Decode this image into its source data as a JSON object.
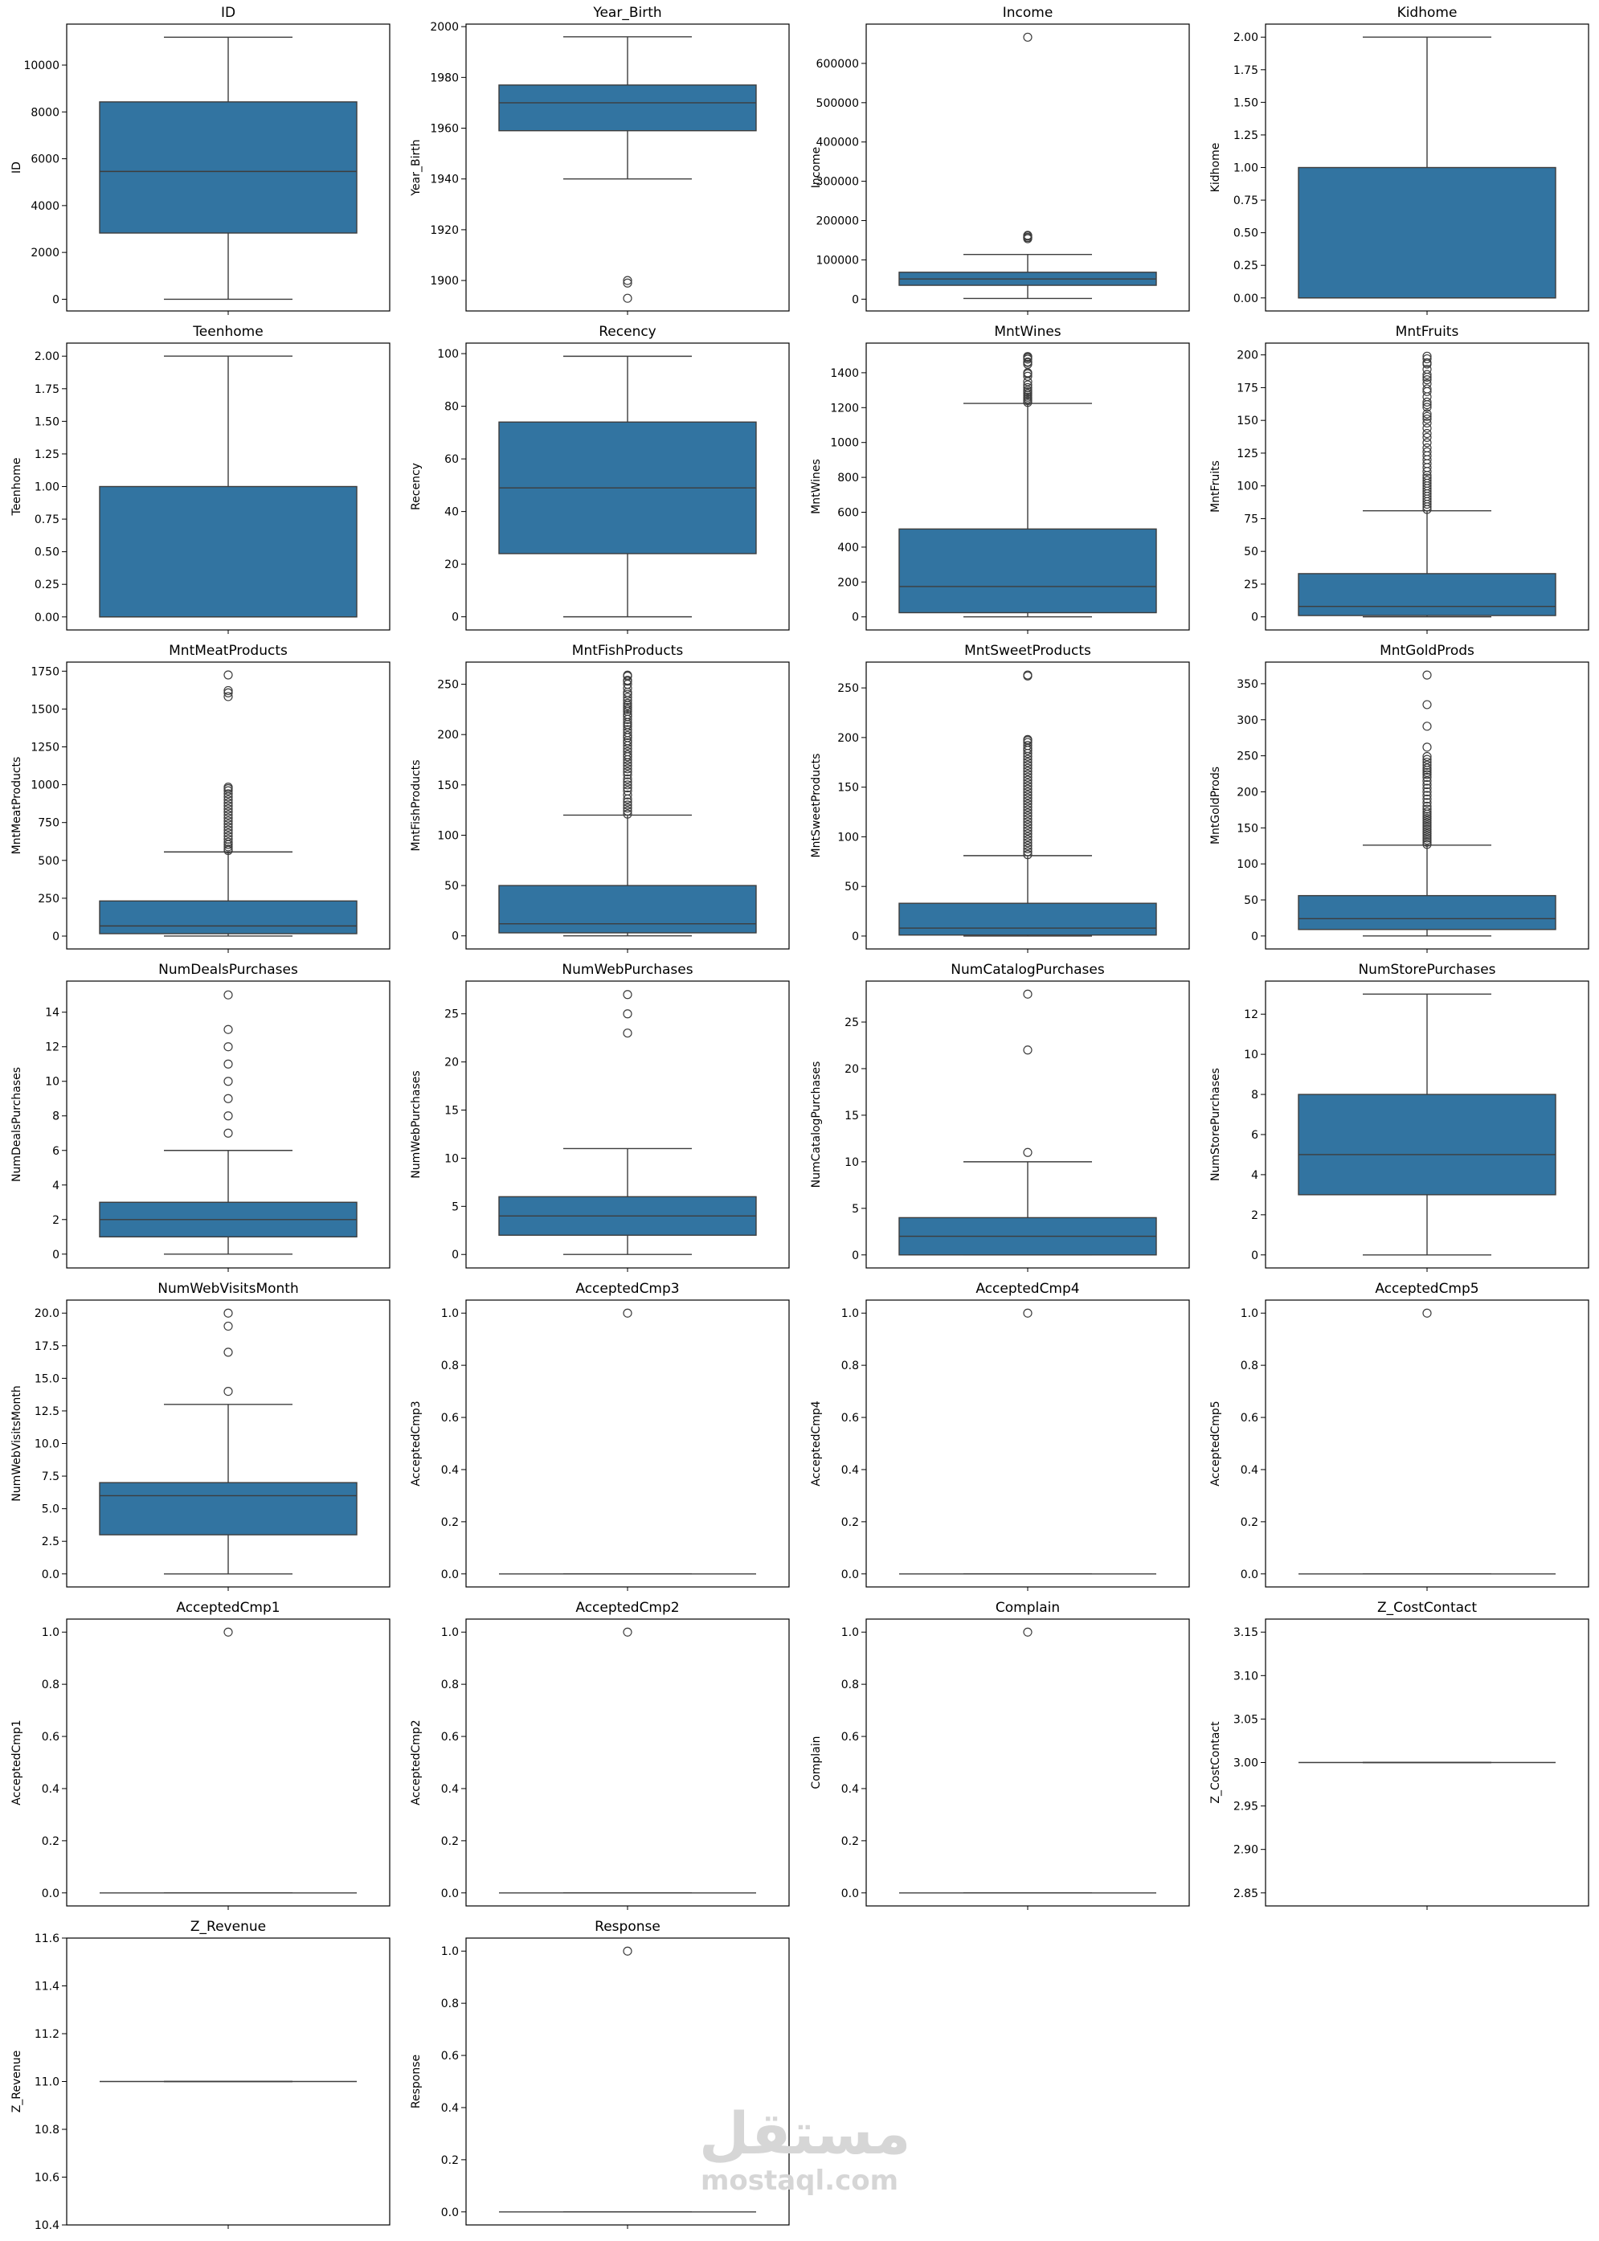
{
  "chart_data": [
    {
      "type": "box",
      "title": "ID",
      "ylabel": "ID",
      "ylim": [
        -500,
        11750
      ],
      "yticks": [
        0,
        2000,
        4000,
        6000,
        8000,
        10000
      ],
      "box": {
        "q1": 2828,
        "median": 5458,
        "q3": 8428,
        "whisker_low": 0,
        "whisker_high": 11191
      },
      "outliers": []
    },
    {
      "type": "box",
      "title": "Year_Birth",
      "ylabel": "Year_Birth",
      "ylim": [
        1888,
        2001
      ],
      "yticks": [
        1900,
        1920,
        1940,
        1960,
        1980,
        2000
      ],
      "box": {
        "q1": 1959,
        "median": 1970,
        "q3": 1977,
        "whisker_low": 1940,
        "whisker_high": 1996
      },
      "outliers": [
        1893,
        1899,
        1900
      ]
    },
    {
      "type": "box",
      "title": "Income",
      "ylabel": "Income",
      "ylim": [
        -30000,
        700000
      ],
      "yticks": [
        0,
        100000,
        200000,
        300000,
        400000,
        500000,
        600000
      ],
      "box": {
        "q1": 35303,
        "median": 51382,
        "q3": 68522,
        "whisker_low": 1730,
        "whisker_high": 113734
      },
      "outliers": [
        153924,
        156924,
        157146,
        157243,
        160803,
        162397,
        666666
      ]
    },
    {
      "type": "box",
      "title": "Kidhome",
      "ylabel": "Kidhome",
      "ylim": [
        -0.1,
        2.1
      ],
      "yticks": [
        0.0,
        0.25,
        0.5,
        0.75,
        1.0,
        1.25,
        1.5,
        1.75,
        2.0
      ],
      "box": {
        "q1": 0,
        "median": 0,
        "q3": 1,
        "whisker_low": 0,
        "whisker_high": 2
      },
      "outliers": []
    },
    {
      "type": "box",
      "title": "Teenhome",
      "ylabel": "Teenhome",
      "ylim": [
        -0.1,
        2.1
      ],
      "yticks": [
        0.0,
        0.25,
        0.5,
        0.75,
        1.0,
        1.25,
        1.5,
        1.75,
        2.0
      ],
      "box": {
        "q1": 0,
        "median": 0,
        "q3": 1,
        "whisker_low": 0,
        "whisker_high": 2
      },
      "outliers": []
    },
    {
      "type": "box",
      "title": "Recency",
      "ylabel": "Recency",
      "ylim": [
        -5,
        104
      ],
      "yticks": [
        0,
        20,
        40,
        60,
        80,
        100
      ],
      "box": {
        "q1": 24,
        "median": 49,
        "q3": 74,
        "whisker_low": 0,
        "whisker_high": 99
      },
      "outliers": []
    },
    {
      "type": "box",
      "title": "MntWines",
      "ylabel": "MntWines",
      "ylim": [
        -75,
        1570
      ],
      "yticks": [
        0,
        200,
        400,
        600,
        800,
        1000,
        1200,
        1400
      ],
      "box": {
        "q1": 24,
        "median": 174,
        "q3": 504,
        "whisker_low": 0,
        "whisker_high": 1224
      },
      "outliers": [
        1230,
        1240,
        1250,
        1260,
        1270,
        1280,
        1290,
        1300,
        1315,
        1330,
        1349,
        1380,
        1394,
        1400,
        1449,
        1459,
        1462,
        1478,
        1486,
        1492,
        1493
      ]
    },
    {
      "type": "box",
      "title": "MntFruits",
      "ylabel": "MntFruits",
      "ylim": [
        -10,
        209
      ],
      "yticks": [
        0,
        25,
        50,
        75,
        100,
        125,
        150,
        175,
        200
      ],
      "box": {
        "q1": 1,
        "median": 8,
        "q3": 33,
        "whisker_low": 0,
        "whisker_high": 81
      },
      "outliers": [
        82,
        84,
        86,
        88,
        90,
        92,
        94,
        96,
        98,
        100,
        102,
        104,
        106,
        108,
        111,
        114,
        117,
        120,
        123,
        126,
        129,
        133,
        137,
        140,
        144,
        148,
        151,
        153,
        155,
        160,
        162,
        164,
        168,
        172,
        174,
        178,
        181,
        183,
        185,
        189,
        193,
        194,
        197,
        199
      ]
    },
    {
      "type": "box",
      "title": "MntMeatProducts",
      "ylabel": "MntMeatProducts",
      "ylim": [
        -85,
        1810
      ],
      "yticks": [
        0,
        250,
        500,
        750,
        1000,
        1250,
        1500,
        1750
      ],
      "box": {
        "q1": 16,
        "median": 67,
        "q3": 232,
        "whisker_low": 0,
        "whisker_high": 556
      },
      "outliers": [
        565,
        575,
        590,
        605,
        620,
        640,
        660,
        680,
        700,
        720,
        740,
        760,
        780,
        800,
        820,
        840,
        860,
        880,
        900,
        920,
        940,
        960,
        974,
        984,
        1582,
        1607,
        1622,
        1725
      ]
    },
    {
      "type": "box",
      "title": "MntFishProducts",
      "ylabel": "MntFishProducts",
      "ylim": [
        -13,
        272
      ],
      "yticks": [
        0,
        50,
        100,
        150,
        200,
        250
      ],
      "box": {
        "q1": 3,
        "median": 12,
        "q3": 50,
        "whisker_low": 0,
        "whisker_high": 120
      },
      "outliers": [
        121,
        124,
        127,
        130,
        133,
        136,
        140,
        144,
        147,
        150,
        153,
        156,
        160,
        163,
        166,
        169,
        172,
        175,
        178,
        180,
        183,
        186,
        189,
        192,
        194,
        197,
        199,
        202,
        205,
        208,
        210,
        212,
        215,
        218,
        220,
        223,
        225,
        227,
        229,
        231,
        234,
        237,
        240,
        242,
        246,
        250,
        253,
        254,
        258,
        259
      ]
    },
    {
      "type": "box",
      "title": "MntSweetProducts",
      "ylabel": "MntSweetProducts",
      "ylim": [
        -13,
        276
      ],
      "yticks": [
        0,
        50,
        100,
        150,
        200,
        250
      ],
      "box": {
        "q1": 1,
        "median": 8,
        "q3": 33,
        "whisker_low": 0,
        "whisker_high": 81
      },
      "outliers": [
        82,
        85,
        88,
        91,
        94,
        97,
        100,
        103,
        106,
        109,
        112,
        115,
        118,
        121,
        124,
        127,
        130,
        133,
        136,
        139,
        142,
        145,
        148,
        151,
        154,
        157,
        160,
        163,
        166,
        169,
        172,
        175,
        178,
        181,
        184,
        187,
        189,
        192,
        195,
        197,
        198,
        262,
        263
      ]
    },
    {
      "type": "box",
      "title": "MntGoldProds",
      "ylabel": "MntGoldProds",
      "ylim": [
        -18,
        380
      ],
      "yticks": [
        0,
        50,
        100,
        150,
        200,
        250,
        300,
        350
      ],
      "box": {
        "q1": 9,
        "median": 24,
        "q3": 56,
        "whisker_low": 0,
        "whisker_high": 126
      },
      "outliers": [
        127,
        130,
        133,
        136,
        139,
        142,
        145,
        148,
        151,
        154,
        157,
        160,
        163,
        166,
        169,
        172,
        176,
        180,
        185,
        190,
        195,
        200,
        205,
        210,
        215,
        220,
        224,
        227,
        230,
        233,
        237,
        241,
        245,
        249,
        262,
        291,
        321,
        362
      ]
    },
    {
      "type": "box",
      "title": "NumDealsPurchases",
      "ylabel": "NumDealsPurchases",
      "ylim": [
        -0.8,
        15.8
      ],
      "yticks": [
        0,
        2,
        4,
        6,
        8,
        10,
        12,
        14
      ],
      "box": {
        "q1": 1,
        "median": 2,
        "q3": 3,
        "whisker_low": 0,
        "whisker_high": 6
      },
      "outliers": [
        7,
        8,
        9,
        10,
        11,
        12,
        13,
        15
      ]
    },
    {
      "type": "box",
      "title": "NumWebPurchases",
      "ylabel": "NumWebPurchases",
      "ylim": [
        -1.4,
        28.4
      ],
      "yticks": [
        0,
        5,
        10,
        15,
        20,
        25
      ],
      "box": {
        "q1": 2,
        "median": 4,
        "q3": 6,
        "whisker_low": 0,
        "whisker_high": 11
      },
      "outliers": [
        23,
        25,
        27
      ]
    },
    {
      "type": "box",
      "title": "NumCatalogPurchases",
      "ylabel": "NumCatalogPurchases",
      "ylim": [
        -1.4,
        29.4
      ],
      "yticks": [
        0,
        5,
        10,
        15,
        20,
        25
      ],
      "box": {
        "q1": 0,
        "median": 2,
        "q3": 4,
        "whisker_low": 0,
        "whisker_high": 10
      },
      "outliers": [
        11,
        22,
        28
      ]
    },
    {
      "type": "box",
      "title": "NumStorePurchases",
      "ylabel": "NumStorePurchases",
      "ylim": [
        -0.65,
        13.65
      ],
      "yticks": [
        0,
        2,
        4,
        6,
        8,
        10,
        12
      ],
      "box": {
        "q1": 3,
        "median": 5,
        "q3": 8,
        "whisker_low": 0,
        "whisker_high": 13
      },
      "outliers": []
    },
    {
      "type": "box",
      "title": "NumWebVisitsMonth",
      "ylabel": "NumWebVisitsMonth",
      "ylim": [
        -1,
        21
      ],
      "yticks": [
        0.0,
        2.5,
        5.0,
        7.5,
        10.0,
        12.5,
        15.0,
        17.5,
        20.0
      ],
      "box": {
        "q1": 3,
        "median": 6,
        "q3": 7,
        "whisker_low": 0,
        "whisker_high": 13
      },
      "outliers": [
        14,
        17,
        19,
        20
      ]
    },
    {
      "type": "box",
      "title": "AcceptedCmp3",
      "ylabel": "AcceptedCmp3",
      "ylim": [
        -0.05,
        1.05
      ],
      "yticks": [
        0.0,
        0.2,
        0.4,
        0.6,
        0.8,
        1.0
      ],
      "box": {
        "q1": 0,
        "median": 0,
        "q3": 0,
        "whisker_low": 0,
        "whisker_high": 0
      },
      "outliers": [
        1
      ]
    },
    {
      "type": "box",
      "title": "AcceptedCmp4",
      "ylabel": "AcceptedCmp4",
      "ylim": [
        -0.05,
        1.05
      ],
      "yticks": [
        0.0,
        0.2,
        0.4,
        0.6,
        0.8,
        1.0
      ],
      "box": {
        "q1": 0,
        "median": 0,
        "q3": 0,
        "whisker_low": 0,
        "whisker_high": 0
      },
      "outliers": [
        1
      ]
    },
    {
      "type": "box",
      "title": "AcceptedCmp5",
      "ylabel": "AcceptedCmp5",
      "ylim": [
        -0.05,
        1.05
      ],
      "yticks": [
        0.0,
        0.2,
        0.4,
        0.6,
        0.8,
        1.0
      ],
      "box": {
        "q1": 0,
        "median": 0,
        "q3": 0,
        "whisker_low": 0,
        "whisker_high": 0
      },
      "outliers": [
        1
      ]
    },
    {
      "type": "box",
      "title": "AcceptedCmp1",
      "ylabel": "AcceptedCmp1",
      "ylim": [
        -0.05,
        1.05
      ],
      "yticks": [
        0.0,
        0.2,
        0.4,
        0.6,
        0.8,
        1.0
      ],
      "box": {
        "q1": 0,
        "median": 0,
        "q3": 0,
        "whisker_low": 0,
        "whisker_high": 0
      },
      "outliers": [
        1
      ]
    },
    {
      "type": "box",
      "title": "AcceptedCmp2",
      "ylabel": "AcceptedCmp2",
      "ylim": [
        -0.05,
        1.05
      ],
      "yticks": [
        0.0,
        0.2,
        0.4,
        0.6,
        0.8,
        1.0
      ],
      "box": {
        "q1": 0,
        "median": 0,
        "q3": 0,
        "whisker_low": 0,
        "whisker_high": 0
      },
      "outliers": [
        1
      ]
    },
    {
      "type": "box",
      "title": "Complain",
      "ylabel": "Complain",
      "ylim": [
        -0.05,
        1.05
      ],
      "yticks": [
        0.0,
        0.2,
        0.4,
        0.6,
        0.8,
        1.0
      ],
      "box": {
        "q1": 0,
        "median": 0,
        "q3": 0,
        "whisker_low": 0,
        "whisker_high": 0
      },
      "outliers": [
        1
      ]
    },
    {
      "type": "box",
      "title": "Z_CostContact",
      "ylabel": "Z_CostContact",
      "ylim": [
        2.835,
        3.165
      ],
      "yticks": [
        2.85,
        2.9,
        2.95,
        3.0,
        3.05,
        3.1,
        3.15
      ],
      "box": {
        "q1": 3,
        "median": 3,
        "q3": 3,
        "whisker_low": 3,
        "whisker_high": 3
      },
      "outliers": []
    },
    {
      "type": "box",
      "title": "Z_Revenue",
      "ylabel": "Z_Revenue",
      "ylim": [
        10.4,
        11.6
      ],
      "yticks": [
        10.4,
        10.6,
        10.8,
        11.0,
        11.2,
        11.4,
        11.6
      ],
      "box": {
        "q1": 11,
        "median": 11,
        "q3": 11,
        "whisker_low": 11,
        "whisker_high": 11
      },
      "outliers": []
    },
    {
      "type": "box",
      "title": "Response",
      "ylabel": "Response",
      "ylim": [
        -0.05,
        1.05
      ],
      "yticks": [
        0.0,
        0.2,
        0.4,
        0.6,
        0.8,
        1.0
      ],
      "box": {
        "q1": 0,
        "median": 0,
        "q3": 0,
        "whisker_low": 0,
        "whisker_high": 0
      },
      "outliers": [
        1
      ]
    }
  ],
  "colors": {
    "box_fill": "#3274a1",
    "line": "#3d3d3d",
    "axis": "#000000"
  },
  "watermark": {
    "arabic": "مستقل",
    "latin": "mostaql.com"
  }
}
